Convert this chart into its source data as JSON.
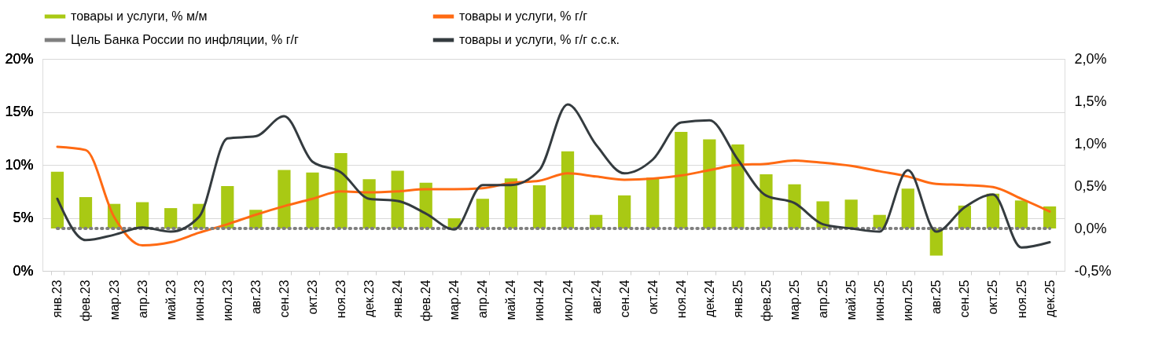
{
  "chart_data": {
    "type": "bar",
    "categories": [
      "янв.23",
      "фев.23",
      "мар.23",
      "апр.23",
      "май.23",
      "июн.23",
      "июл.23",
      "авг.23",
      "сен.23",
      "окт.23",
      "ноя.23",
      "дек.23",
      "янв.24",
      "фев.24",
      "мар.24",
      "апр.24",
      "май.24",
      "июн.24",
      "июл.24",
      "авг.24",
      "сен.24",
      "окт.24",
      "ноя.24",
      "дек.24",
      "янв.25",
      "фев.25",
      "мар.25",
      "апр.25",
      "май.25",
      "июн.25",
      "июл.25",
      "авг.25",
      "сен.25",
      "окт.25",
      "ноя.25",
      "дек.25"
    ],
    "series": [
      {
        "name": "товары и услуги, % м/м",
        "axis": "y2",
        "color": "#a9c914",
        "values": [
          0.67,
          0.37,
          0.29,
          0.31,
          0.24,
          0.29,
          0.5,
          0.22,
          0.69,
          0.66,
          0.89,
          0.58,
          0.68,
          0.54,
          0.12,
          0.35,
          0.59,
          0.51,
          0.91,
          0.16,
          0.39,
          0.6,
          1.14,
          1.05,
          0.99,
          0.64,
          0.52,
          0.32,
          0.34,
          0.16,
          0.47,
          -0.32,
          0.27,
          0.41,
          0.33,
          0.26
        ]
      },
      {
        "name": "товары и услуги, % г/г",
        "type": "line",
        "color": "#ff6a13",
        "values": [
          11.7,
          11.4,
          5.1,
          2.4,
          2.7,
          3.6,
          4.4,
          5.3,
          6.1,
          6.8,
          7.5,
          7.4,
          7.5,
          7.7,
          7.7,
          7.8,
          8.3,
          8.5,
          9.2,
          8.9,
          8.6,
          8.7,
          9.0,
          9.5,
          10.0,
          10.1,
          10.4,
          10.2,
          9.9,
          9.4,
          8.9,
          8.2,
          8.1,
          7.9,
          6.8,
          5.6
        ]
      },
      {
        "name": "Цель Банка России по инфляции, % г/г",
        "type": "line",
        "line_style": "dotted",
        "color": "#7f7f7f",
        "values": [
          4,
          4,
          4,
          4,
          4,
          4,
          4,
          4,
          4,
          4,
          4,
          4,
          4,
          4,
          4,
          4,
          4,
          4,
          4,
          4,
          4,
          4,
          4,
          4,
          4,
          4,
          4,
          4,
          4,
          4,
          4,
          4,
          4,
          4,
          4,
          4
        ]
      },
      {
        "name": "товары и услуги, % г/г с.с.к.",
        "type": "line",
        "color": "#343b3f",
        "values": [
          6.8,
          2.9,
          3.4,
          4.1,
          3.7,
          5.1,
          12.5,
          12.7,
          14.6,
          10.3,
          9.3,
          6.8,
          6.6,
          5.4,
          3.9,
          8.1,
          8.1,
          9.5,
          15.7,
          11.9,
          9.2,
          10.5,
          14.0,
          14.2,
          10.5,
          7.1,
          6.4,
          4.4,
          4.0,
          3.7,
          9.5,
          3.7,
          6.0,
          7.2,
          2.2,
          2.7
        ]
      }
    ],
    "ylim": [
      0,
      20
    ],
    "yticks": [
      {
        "value": 0,
        "label": "0%"
      },
      {
        "value": 5,
        "label": "5%"
      },
      {
        "value": 10,
        "label": "10%"
      },
      {
        "value": 15,
        "label": "15%"
      },
      {
        "value": 20,
        "label": "20%"
      }
    ],
    "y2lim": [
      -0.5,
      2.0
    ],
    "y2ticks": [
      {
        "value": -0.5,
        "label": "-0,5%"
      },
      {
        "value": 0,
        "label": "0,0%"
      },
      {
        "value": 0.5,
        "label": "0,5%"
      },
      {
        "value": 1.0,
        "label": "1,0%"
      },
      {
        "value": 1.5,
        "label": "1,5%"
      },
      {
        "value": 2.0,
        "label": "2,0%"
      }
    ],
    "grid": "y",
    "legend": "top"
  }
}
